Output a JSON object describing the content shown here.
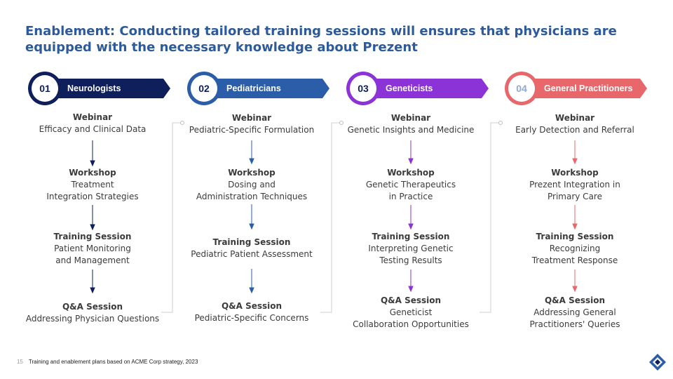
{
  "title": "Enablement: Conducting tailored training sessions will ensures that physicians are equipped with the necessary knowledge about Prezent",
  "colors": {
    "c1": "#0E1F5B",
    "c2": "#2B5DA8",
    "c3": "#8B33D6",
    "c4": "#E8676B"
  },
  "columns": [
    {
      "number": "01",
      "label": "Neurologists",
      "items": [
        {
          "title": "Webinar",
          "desc": "Efficacy and Clinical Data"
        },
        {
          "title": "Workshop",
          "desc": "Treatment\nIntegration Strategies"
        },
        {
          "title": "Training Session",
          "desc": "Patient Monitoring\nand Management"
        },
        {
          "title": "Q&A Session",
          "desc": "Addressing Physician Questions"
        }
      ]
    },
    {
      "number": "02",
      "label": "Pediatricians",
      "items": [
        {
          "title": "Webinar",
          "desc": "Pediatric-Specific Formulation"
        },
        {
          "title": "Workshop",
          "desc": "Dosing and\nAdministration Techniques"
        },
        {
          "title": "Training Session",
          "desc": "Pediatric Patient Assessment"
        },
        {
          "title": "Q&A Session",
          "desc": "Pediatric-Specific Concerns"
        }
      ]
    },
    {
      "number": "03",
      "label": "Geneticists",
      "items": [
        {
          "title": "Webinar",
          "desc": "Genetic Insights and Medicine"
        },
        {
          "title": "Workshop",
          "desc": "Genetic Therapeutics\nin Practice"
        },
        {
          "title": "Training Session",
          "desc": "Interpreting Genetic\nTesting Results"
        },
        {
          "title": "Q&A Session",
          "desc": "Geneticist\nCollaboration Opportunities"
        }
      ]
    },
    {
      "number": "04",
      "label": "General Practitioners",
      "items": [
        {
          "title": "Webinar",
          "desc": "Early Detection and Referral"
        },
        {
          "title": "Workshop",
          "desc": "Prezent Integration in\nPrimary Care"
        },
        {
          "title": "Training Session",
          "desc": "Recognizing\nTreatment Response"
        },
        {
          "title": "Q&A Session",
          "desc": "Addressing General\nPractitioners' Queries"
        }
      ]
    }
  ],
  "footer": {
    "page": "15",
    "note": "Training and enablement plans based on ACME Corp strategy, 2023"
  },
  "icons": {
    "logo": "prezent-logo-icon"
  }
}
